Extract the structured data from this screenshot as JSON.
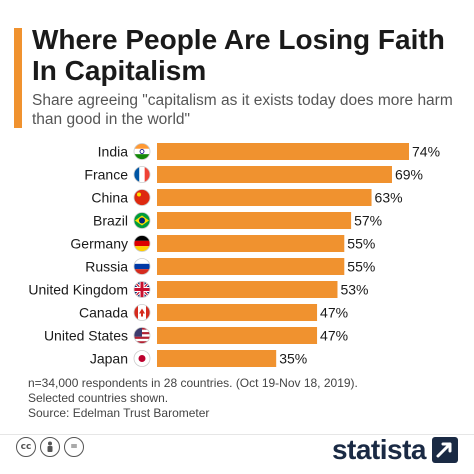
{
  "header": {
    "title": "Where People Are Losing Faith In Capitalism",
    "subtitle": "Share agreeing \"capitalism as it exists today does more harm than good in the world\""
  },
  "chart_data": {
    "type": "bar",
    "orientation": "horizontal",
    "categories": [
      "India",
      "France",
      "China",
      "Brazil",
      "Germany",
      "Russia",
      "United Kingdom",
      "Canada",
      "United States",
      "Japan"
    ],
    "values": [
      74,
      69,
      63,
      57,
      55,
      55,
      53,
      47,
      47,
      35
    ],
    "value_labels": [
      "74%",
      "69%",
      "63%",
      "57%",
      "55%",
      "55%",
      "53%",
      "47%",
      "47%",
      "35%"
    ],
    "flag_icons": [
      "flag-india-icon",
      "flag-france-icon",
      "flag-china-icon",
      "flag-brazil-icon",
      "flag-germany-icon",
      "flag-russia-icon",
      "flag-united-kingdom-icon",
      "flag-canada-icon",
      "flag-united-states-icon",
      "flag-japan-icon"
    ],
    "unit": "%",
    "xlim": [
      0,
      74
    ],
    "bar_color": "#f0922f",
    "grid": false,
    "legend": "none"
  },
  "notes": {
    "line1": "n=34,000 respondents in 28 countries. (Oct 19-Nov 18, 2019).",
    "line2": "Selected countries shown.",
    "source": "Source: Edelman Trust Barometer"
  },
  "footer": {
    "license_icons": [
      "cc-icon",
      "attribution-icon",
      "no-derivatives-icon"
    ],
    "brand": "statista",
    "brand_icon": "statista-arrow-icon"
  },
  "colors": {
    "accent": "#f0922f",
    "brand": "#1a2a44",
    "text": "#1a1a1a",
    "muted": "#555555"
  }
}
